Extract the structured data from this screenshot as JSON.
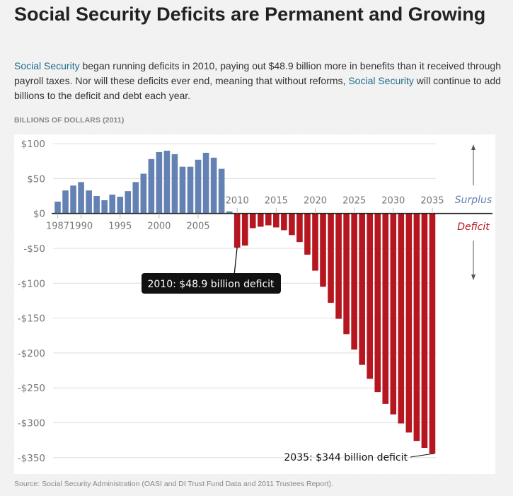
{
  "header": {
    "title": "Social Security Deficits are Permanent and Growing"
  },
  "intro": {
    "link1": "Social Security",
    "text1": " began running deficits in 2010, paying out $48.9 billion more in benefits than it received through payroll taxes. Nor will these deficits ever end, meaning that without reforms, ",
    "link2": "Social Security",
    "text2": " will continue to add billions to the deficit and debt each year."
  },
  "units_label": "BILLIONS OF DOLLARS (2011)",
  "source": "Source: Social Security Administration (OASI and DI Trust Fund Data and 2011 Trustees Report).",
  "colors": {
    "surplus": "#6381b2",
    "deficit": "#b5161f",
    "annotation_bg": "#111111"
  },
  "chart_data": {
    "type": "bar",
    "title": "Social Security Deficits are Permanent and Growing",
    "xlabel": "",
    "ylabel": "Billions of dollars (2011)",
    "ylim": [
      -350,
      100
    ],
    "yticks": [
      100,
      50,
      0,
      -50,
      -100,
      -150,
      -200,
      -250,
      -300,
      -350
    ],
    "ytick_labels": [
      "$100",
      "$50",
      "$0",
      "-$50",
      "-$100",
      "-$150",
      "-$200",
      "-$250",
      "-$300",
      "-$350"
    ],
    "xticks_surplus": [
      1987,
      1990,
      1995,
      2000,
      2005
    ],
    "xticks_deficit": [
      2010,
      2015,
      2020,
      2025,
      2030,
      2035
    ],
    "grid": true,
    "legend": {
      "surplus_label": "Surplus",
      "deficit_label": "Deficit",
      "placement": "right"
    },
    "annotations": [
      {
        "year": 2010,
        "text": "2010: $48.9 billion deficit",
        "style": "dark-box"
      },
      {
        "year": 2035,
        "text": "2035: $344 billion deficit",
        "style": "plain"
      }
    ],
    "series": [
      {
        "name": "Surplus",
        "years": [
          1987,
          1988,
          1989,
          1990,
          1991,
          1992,
          1993,
          1994,
          1995,
          1996,
          1997,
          1998,
          1999,
          2000,
          2001,
          2002,
          2003,
          2004,
          2005,
          2006,
          2007,
          2008,
          2009
        ],
        "values": [
          17,
          33,
          40,
          45,
          33,
          25,
          19,
          27,
          24,
          32,
          45,
          57,
          78,
          88,
          90,
          85,
          67,
          67,
          77,
          87,
          80,
          64,
          3
        ]
      },
      {
        "name": "Deficit",
        "years": [
          2010,
          2011,
          2012,
          2013,
          2014,
          2015,
          2016,
          2017,
          2018,
          2019,
          2020,
          2021,
          2022,
          2023,
          2024,
          2025,
          2026,
          2027,
          2028,
          2029,
          2030,
          2031,
          2032,
          2033,
          2034,
          2035
        ],
        "values": [
          -48.9,
          -46,
          -21,
          -19,
          -17,
          -20,
          -24,
          -31,
          -41,
          -59,
          -82,
          -105,
          -128,
          -151,
          -173,
          -195,
          -217,
          -237,
          -256,
          -273,
          -288,
          -301,
          -314,
          -326,
          -336,
          -344
        ]
      }
    ]
  }
}
